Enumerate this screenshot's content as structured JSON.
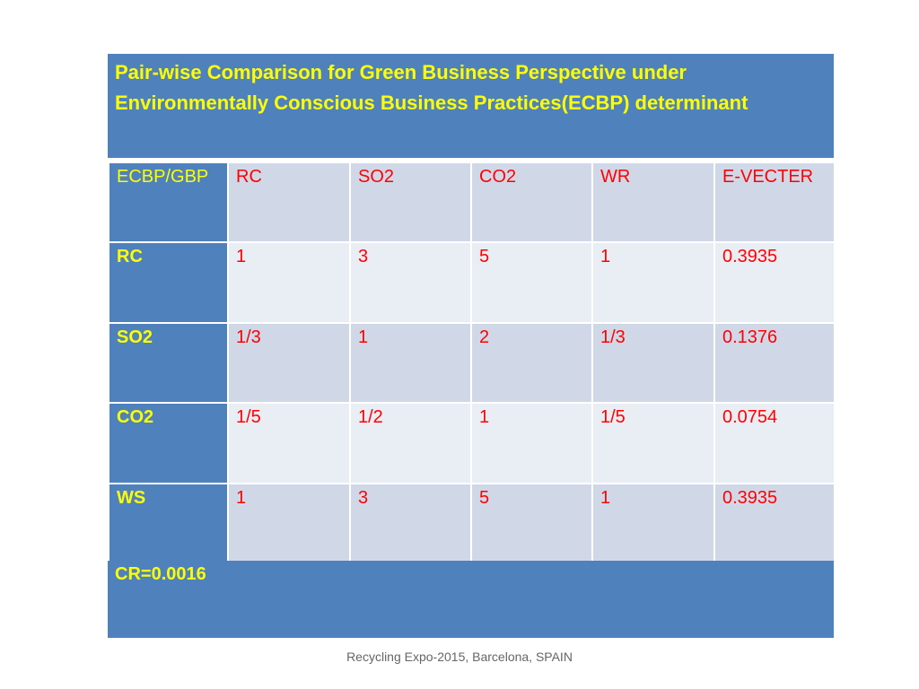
{
  "title": "Pair-wise Comparison for Green Business Perspective under Environmentally Conscious Business Practices(ECBP) determinant",
  "table": {
    "headers": [
      "ECBP/GBP",
      "RC",
      "SO2",
      "CO2",
      "WR",
      "E-VECTER"
    ],
    "rows": [
      [
        "RC",
        "1",
        "3",
        "5",
        "1",
        "0.3935"
      ],
      [
        "SO2",
        "1/3",
        "1",
        "2",
        "1/3",
        "0.1376"
      ],
      [
        "CO2",
        "1/5",
        "1/2",
        "1",
        "1/5",
        "0.0754"
      ],
      [
        "WS",
        "1",
        "3",
        "5",
        "1",
        "0.3935"
      ]
    ]
  },
  "cr": "CR=0.0016",
  "footer": "Recycling Expo-2015, Barcelona, SPAIN",
  "colors": {
    "header_blue": "#4f81bd",
    "title_text": "#ffff00",
    "cell_text": "#ff0000",
    "row_dark": "#d0d8e8",
    "row_light": "#e9edf4"
  }
}
